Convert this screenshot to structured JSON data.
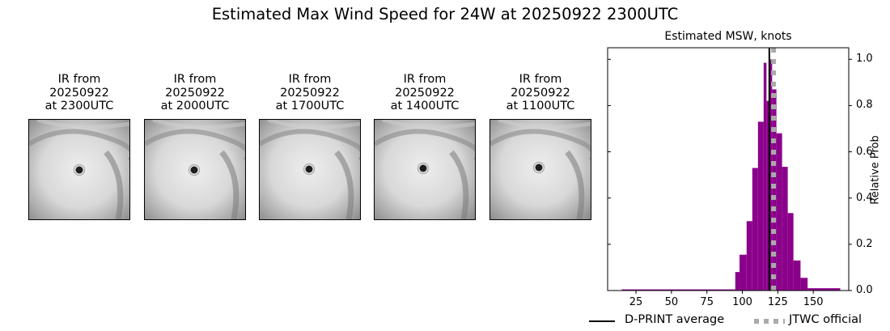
{
  "figure": {
    "suptitle": "Estimated Max Wind Speed for 24W at 20250922 2300UTC"
  },
  "ir_panels": [
    {
      "line1": "IR from",
      "line2": "20250922",
      "line3": "at 2300UTC",
      "eye_dx": 62,
      "eye_dy": 62
    },
    {
      "line1": "IR from",
      "line2": "20250922",
      "line3": "at 2000UTC",
      "eye_dx": 61,
      "eye_dy": 62
    },
    {
      "line1": "IR from",
      "line2": "20250922",
      "line3": "at 1700UTC",
      "eye_dx": 61,
      "eye_dy": 61
    },
    {
      "line1": "IR from",
      "line2": "20250922",
      "line3": "at 1400UTC",
      "eye_dx": 60,
      "eye_dy": 60
    },
    {
      "line1": "IR from",
      "line2": "20250922",
      "line3": "at 1100UTC",
      "eye_dx": 60,
      "eye_dy": 59
    }
  ],
  "chart_data": {
    "type": "bar",
    "title": "Estimated MSW, knots",
    "xlabel": "",
    "ylabel": "Relative Prob",
    "xlim": [
      5,
      175
    ],
    "ylim": [
      0,
      1.05
    ],
    "xticks": [
      25,
      50,
      75,
      100,
      125,
      150
    ],
    "xtick_labels": [
      "25",
      "50",
      "75",
      "100",
      "125",
      "150"
    ],
    "yticks": [
      0.0,
      0.2,
      0.4,
      0.6,
      0.8,
      1.0
    ],
    "ytick_labels": [
      "0.0",
      "0.2",
      "0.4",
      "0.6",
      "0.8",
      "1.0"
    ],
    "y_axis_side": "right",
    "grid": false,
    "bar_color": "#8b008b",
    "bins": [
      {
        "x0": 15,
        "x1": 95,
        "value": 0.005
      },
      {
        "x0": 95,
        "x1": 98,
        "value": 0.08
      },
      {
        "x0": 98,
        "x1": 103,
        "value": 0.155
      },
      {
        "x0": 103,
        "x1": 107,
        "value": 0.3
      },
      {
        "x0": 107,
        "x1": 111,
        "value": 0.53
      },
      {
        "x0": 111,
        "x1": 115,
        "value": 0.73
      },
      {
        "x0": 115,
        "x1": 117,
        "value": 0.985
      },
      {
        "x0": 117,
        "x1": 119,
        "value": 0.82
      },
      {
        "x0": 119,
        "x1": 121,
        "value": 1.0
      },
      {
        "x0": 121,
        "x1": 124,
        "value": 0.87
      },
      {
        "x0": 124,
        "x1": 128,
        "value": 0.68
      },
      {
        "x0": 128,
        "x1": 132,
        "value": 0.535
      },
      {
        "x0": 132,
        "x1": 136,
        "value": 0.335
      },
      {
        "x0": 136,
        "x1": 141,
        "value": 0.13
      },
      {
        "x0": 141,
        "x1": 146,
        "value": 0.055
      },
      {
        "x0": 146,
        "x1": 169,
        "value": 0.01
      }
    ],
    "lines": [
      {
        "name": "D-PRINT average",
        "x": 119,
        "color": "#000000",
        "style": "solid"
      },
      {
        "name": "JTWC official",
        "x": 122,
        "color": "#aaaaaa",
        "style": "dotted"
      }
    ],
    "legend": {
      "position": "bottom",
      "entries": [
        {
          "label": "D-PRINT average",
          "style": "solid",
          "color": "#000000"
        },
        {
          "label": "JTWC official",
          "style": "dotted",
          "color": "#aaaaaa"
        }
      ]
    }
  }
}
